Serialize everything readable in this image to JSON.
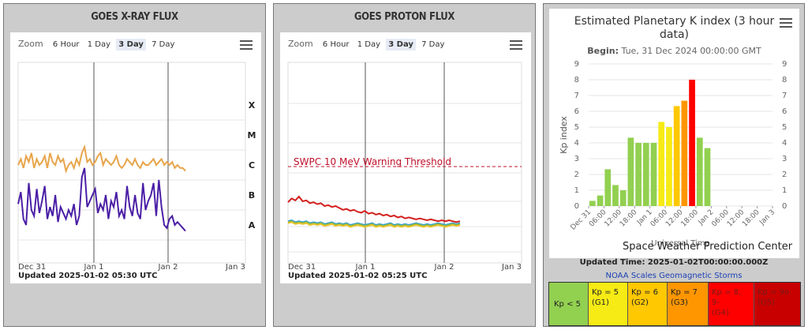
{
  "panels": [
    {
      "title": "GOES X-RAY FLUX",
      "zoom": {
        "label": "Zoom",
        "options": [
          "6 Hour",
          "1 Day",
          "3 Day",
          "7 Day"
        ],
        "active": "3 Day"
      },
      "updated": "Updated 2025-01-02 05:30 UTC",
      "colors": {
        "upper": "#e8a54b",
        "lower": "#4b1fa6"
      }
    },
    {
      "title": "GOES PROTON FLUX",
      "zoom": {
        "label": "Zoom",
        "options": [
          "6 Hour",
          "1 Day",
          "3 Day",
          "7 Day"
        ],
        "active": "3 Day"
      },
      "updated": "Updated 2025-01-02 05:25 UTC",
      "colors": {
        "threshold": "#c0102a",
        "high": "#d42020",
        "mid_a": "#7fb84a",
        "mid_b": "#e8c22a",
        "mid_c": "#3aa0d8"
      }
    },
    {
      "title": "Estimated Planetary K index (3 hour data)",
      "begin_label": "Begin:",
      "begin_value": "Tue, 31 Dec 2024 00:00:00 GMT",
      "center": "Space Weather Prediction Center",
      "updated": "Updated Time: 2025-01-02T00:00:00.000Z",
      "scales_link": "NOAA Scales Geomagnetic Storms",
      "legend": [
        {
          "line1": "Kp < 5",
          "line2": "",
          "color": "#92d050"
        },
        {
          "line1": "Kp = 5",
          "line2": "(G1)",
          "color": "#f6eb14"
        },
        {
          "line1": "Kp = 6",
          "line2": "(G2)",
          "color": "#ffc800"
        },
        {
          "line1": "Kp = 7",
          "line2": "(G3)",
          "color": "#ff9600"
        },
        {
          "line1": "Kp = 8, 9-",
          "line2": "(G4)",
          "color": "#ff0000"
        },
        {
          "line1": "Kp = 9o",
          "line2": "(G5)",
          "color": "#c80000"
        }
      ]
    }
  ],
  "chart_data": [
    {
      "type": "line",
      "title": "GOES X-RAY FLUX",
      "x_ticks": [
        "Dec 31",
        "Jan 1",
        "Jan 2",
        "Jan 3"
      ],
      "y_class_labels": [
        "X",
        "M",
        "C",
        "B",
        "A"
      ],
      "series": [
        {
          "values": [
            3.0,
            3.2,
            2.9,
            3.3,
            3.1,
            3.4,
            2.9,
            3.2,
            3.0,
            3.1,
            3.3,
            2.9,
            3.4,
            3.1,
            3.0,
            3.3,
            3.1,
            3.2,
            2.8,
            3.0,
            3.1,
            2.9,
            3.2,
            3.0,
            3.4,
            3.6,
            3.1,
            3.2,
            3.0,
            3.1,
            3.3,
            3.4,
            3.0,
            3.2,
            3.1,
            3.0,
            3.1,
            3.3,
            3.0,
            2.9,
            3.0,
            3.2,
            3.1,
            3.0,
            3.2,
            3.0,
            2.9,
            3.1,
            3.0,
            3.0,
            3.1,
            3.2,
            3.0,
            3.1,
            3.2,
            3.0,
            3.1,
            3.0,
            3.1,
            2.9,
            3.0,
            2.9,
            2.9,
            2.8
          ]
        },
        {
          "values": [
            1.7,
            2.1,
            1.2,
            1.0,
            2.4,
            1.5,
            1.3,
            2.2,
            1.4,
            1.8,
            2.3,
            1.2,
            1.6,
            1.3,
            2.0,
            1.1,
            1.6,
            1.4,
            1.2,
            1.5,
            1.3,
            1.7,
            1.0,
            1.3,
            2.6,
            2.9,
            1.6,
            1.8,
            2.0,
            2.2,
            1.4,
            1.7,
            1.5,
            2.0,
            1.2,
            1.8,
            1.6,
            2.1,
            1.3,
            1.5,
            1.2,
            2.3,
            1.6,
            1.3,
            2.0,
            1.4,
            1.2,
            2.4,
            1.5,
            1.8,
            2.0,
            2.4,
            1.3,
            2.5,
            1.6,
            1.0,
            0.9,
            1.2,
            1.3,
            1.0,
            1.1,
            1.0,
            0.9,
            0.8
          ]
        }
      ]
    },
    {
      "type": "line",
      "title": "GOES PROTON FLUX",
      "x_ticks": [
        "Dec 31",
        "Jan 1",
        "Jan 2",
        "Jan 3"
      ],
      "annotations": [
        "SWPC 10 MeV Warning Threshold"
      ],
      "series": [
        {
          "values": [
            0.64,
            0.68,
            0.66,
            0.7,
            0.65,
            0.66,
            0.63,
            0.64,
            0.62,
            0.63,
            0.6,
            0.61,
            0.59,
            0.6,
            0.58,
            0.56,
            0.57,
            0.55,
            0.56,
            0.54,
            0.53,
            0.55,
            0.52,
            0.53,
            0.51,
            0.52,
            0.5,
            0.51,
            0.49,
            0.5,
            0.48,
            0.49,
            0.47,
            0.48,
            0.47,
            0.46,
            0.47,
            0.46,
            0.45,
            0.46,
            0.45,
            0.44,
            0.45,
            0.44,
            0.45,
            0.44,
            0.43,
            0.44
          ]
        },
        {
          "values": [
            0.44,
            0.45,
            0.43,
            0.44,
            0.43,
            0.44,
            0.42,
            0.43,
            0.42,
            0.43,
            0.41,
            0.42,
            0.43,
            0.41,
            0.42,
            0.41,
            0.42,
            0.4,
            0.41,
            0.42,
            0.41,
            0.4,
            0.41,
            0.42,
            0.4,
            0.41,
            0.4,
            0.41,
            0.42,
            0.4,
            0.41,
            0.4,
            0.41,
            0.4,
            0.41,
            0.42,
            0.41,
            0.4,
            0.41,
            0.4,
            0.41,
            0.42,
            0.41,
            0.4,
            0.41,
            0.42,
            0.41,
            0.42
          ]
        },
        {
          "values": [
            0.43,
            0.44,
            0.42,
            0.43,
            0.42,
            0.43,
            0.41,
            0.42,
            0.41,
            0.42,
            0.4,
            0.41,
            0.42,
            0.4,
            0.41,
            0.4,
            0.41,
            0.39,
            0.4,
            0.41,
            0.4,
            0.39,
            0.4,
            0.41,
            0.39,
            0.4,
            0.39,
            0.4,
            0.41,
            0.39,
            0.4,
            0.39,
            0.4,
            0.39,
            0.4,
            0.41,
            0.4,
            0.39,
            0.4,
            0.39,
            0.4,
            0.41,
            0.4,
            0.39,
            0.4,
            0.41,
            0.4,
            0.41
          ]
        },
        {
          "values": [
            0.42,
            0.43,
            0.41,
            0.42,
            0.41,
            0.42,
            0.4,
            0.41,
            0.4,
            0.41,
            0.39,
            0.4,
            0.41,
            0.39,
            0.4,
            0.39,
            0.4,
            0.38,
            0.39,
            0.4,
            0.39,
            0.38,
            0.39,
            0.4,
            0.38,
            0.39,
            0.38,
            0.39,
            0.4,
            0.38,
            0.39,
            0.38,
            0.39,
            0.38,
            0.39,
            0.4,
            0.39,
            0.38,
            0.39,
            0.38,
            0.39,
            0.4,
            0.39,
            0.38,
            0.39,
            0.4,
            0.39,
            0.4
          ]
        }
      ]
    },
    {
      "type": "bar",
      "title": "Estimated Planetary K index (3 hour data)",
      "ylabel": "Kp index",
      "xlabel": "Universal Time",
      "ylim": [
        0,
        9
      ],
      "y_ticks": [
        "0",
        "1",
        "2",
        "3",
        "4",
        "5",
        "6",
        "7",
        "8",
        "9"
      ],
      "x_ticks": [
        "Dec 31",
        "06:00",
        "12:00",
        "18:00",
        "Jan 1",
        "06:00",
        "12:00",
        "18:00",
        "Jan 2",
        "06:00",
        "12:00",
        "18:00",
        "Jan 3"
      ],
      "values": [
        0.33,
        0.67,
        2.33,
        1.33,
        1.0,
        4.33,
        4.0,
        4.0,
        4.0,
        5.33,
        5.0,
        6.33,
        6.67,
        8.0,
        4.33,
        3.67
      ]
    }
  ]
}
